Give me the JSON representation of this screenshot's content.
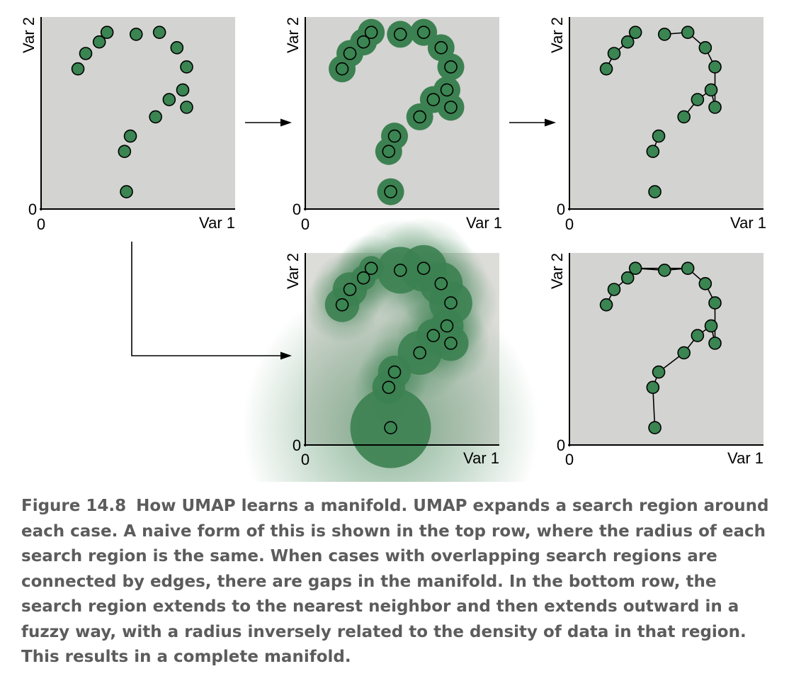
{
  "colors": {
    "panel_bg": "#d3d3d1",
    "point_fill": "#3a8552",
    "region_fill": "#3c8151",
    "stroke": "#000000",
    "caption_text": "#5c5c5c"
  },
  "points": [
    {
      "x": 0.19,
      "y": 0.73
    },
    {
      "x": 0.23,
      "y": 0.81
    },
    {
      "x": 0.3,
      "y": 0.87
    },
    {
      "x": 0.34,
      "y": 0.92
    },
    {
      "x": 0.49,
      "y": 0.91
    },
    {
      "x": 0.61,
      "y": 0.92
    },
    {
      "x": 0.7,
      "y": 0.84
    },
    {
      "x": 0.75,
      "y": 0.74
    },
    {
      "x": 0.73,
      "y": 0.62
    },
    {
      "x": 0.66,
      "y": 0.57
    },
    {
      "x": 0.75,
      "y": 0.53
    },
    {
      "x": 0.59,
      "y": 0.48
    },
    {
      "x": 0.46,
      "y": 0.38
    },
    {
      "x": 0.43,
      "y": 0.3
    },
    {
      "x": 0.44,
      "y": 0.09
    }
  ],
  "panels": [
    {
      "id": "top-left",
      "x_axis_label": "Var 1",
      "y_axis_label": "Var 2",
      "x_origin": "0",
      "y_origin": "0",
      "mode": "points"
    },
    {
      "id": "top-middle",
      "x_axis_label": "Var 1",
      "y_axis_label": "Var 2",
      "x_origin": "0",
      "y_origin": "0",
      "mode": "fixed-radius"
    },
    {
      "id": "top-right",
      "x_axis_label": "Var 1",
      "y_axis_label": "Var 2",
      "x_origin": "0",
      "y_origin": "0",
      "mode": "graph-gaps"
    },
    {
      "id": "bottom-middle",
      "x_axis_label": "Var 1",
      "y_axis_label": "Var 2",
      "x_origin": "0",
      "y_origin": "0",
      "mode": "fuzzy-radius"
    },
    {
      "id": "bottom-right",
      "x_axis_label": "Var 1",
      "y_axis_label": "Var 2",
      "x_origin": "0",
      "y_origin": "0",
      "mode": "graph-complete"
    }
  ],
  "edges_with_gaps": [
    [
      0,
      1
    ],
    [
      1,
      2
    ],
    [
      2,
      3
    ],
    [
      4,
      5
    ],
    [
      5,
      6
    ],
    [
      6,
      7
    ],
    [
      7,
      10
    ],
    [
      10,
      8
    ],
    [
      8,
      9
    ],
    [
      9,
      11
    ],
    [
      12,
      13
    ]
  ],
  "edges_complete": [
    [
      0,
      1
    ],
    [
      1,
      2
    ],
    [
      2,
      3
    ],
    [
      3,
      4
    ],
    [
      4,
      5
    ],
    [
      5,
      6
    ],
    [
      3,
      5
    ],
    [
      6,
      7
    ],
    [
      7,
      10
    ],
    [
      10,
      8
    ],
    [
      8,
      9
    ],
    [
      9,
      11
    ],
    [
      11,
      12
    ],
    [
      12,
      13
    ],
    [
      13,
      14
    ]
  ],
  "caption": {
    "label": "Figure 14.8",
    "text": "How UMAP learns a manifold. UMAP expands a search region around each case. A naive form of this is shown in the top row, where the radius of each search region is the same. When cases with overlapping search regions are connected by edges, there are gaps in the manifold. In the bottom row, the search region extends to the nearest neighbor and then extends outward in a fuzzy way, with a radius inversely related to the density of data in that region. This results in a complete manifold."
  }
}
